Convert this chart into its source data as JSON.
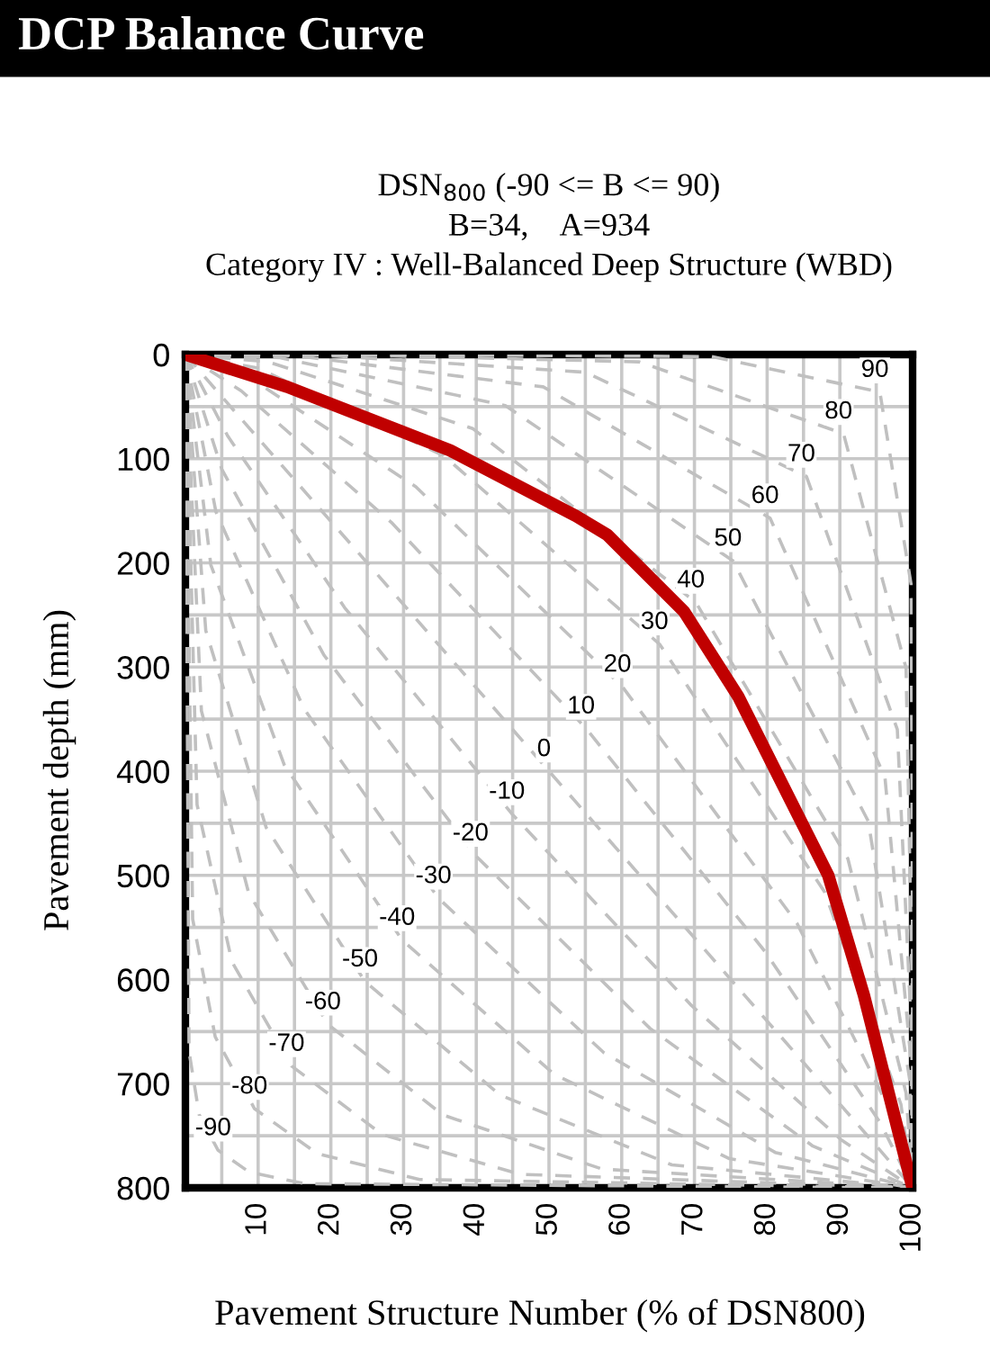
{
  "chart_data": {
    "type": "line",
    "title": "DCP Balance Curve",
    "subtitle": "DSN$_{800}$ (-90 <= B <= 90)\nB=34,    A=934\nCategory IV : Well-Balanced Deep Structure (WBD)",
    "xlabel": "Pavement Structure Number (% of DSN800)",
    "ylabel": "Pavement depth (mm)",
    "xlim": [
      0,
      100
    ],
    "ylim": [
      800,
      0
    ],
    "xticks": [
      {
        "value": 0,
        "label": null
      },
      {
        "value": 5,
        "label": null
      },
      10,
      {
        "value": 15,
        "label": null
      },
      20,
      {
        "value": 25,
        "label": null
      },
      30,
      {
        "value": 35,
        "label": null
      },
      40,
      {
        "value": 45,
        "label": null
      },
      50,
      {
        "value": 55,
        "label": null
      },
      60,
      {
        "value": 65,
        "label": null
      },
      70,
      {
        "value": 75,
        "label": null
      },
      80,
      {
        "value": 85,
        "label": null
      },
      90,
      {
        "value": 95,
        "label": null
      },
      100
    ],
    "yticks": [
      0,
      {
        "value": 50,
        "label": null
      },
      100,
      {
        "value": 150,
        "label": null
      },
      200,
      {
        "value": 250,
        "label": null
      },
      300,
      {
        "value": 350,
        "label": null
      },
      400,
      {
        "value": 450,
        "label": null
      },
      500,
      {
        "value": 550,
        "label": null
      },
      600,
      {
        "value": 650,
        "label": null
      },
      700,
      {
        "value": 750,
        "label": null
      },
      800
    ],
    "grid": true,
    "legend": false,
    "marker": "none",
    "series": [
      {
        "name": "-90",
        "color": "#c0c0c0",
        "line_style": "dashed",
        "x": [
          0,
          0.5,
          1.9,
          4.5,
          8.8,
          16.4,
          100
        ],
        "values": [
          0,
          669,
          730,
          764,
          785,
          796,
          800
        ]
      },
      {
        "name": "-80",
        "color": "#c0c0c0",
        "line_style": "dashed",
        "x": [
          0,
          1.0,
          4.1,
          9.5,
          18.1,
          32.2,
          100
        ],
        "values": [
          0,
          542,
          655,
          724,
          767,
          792,
          800
        ]
      },
      {
        "name": "-70",
        "color": "#c0c0c0",
        "line_style": "dashed",
        "x": [
          0,
          1.6,
          6.4,
          14.6,
          27.1,
          46.0,
          100
        ],
        "values": [
          0,
          432,
          583,
          683,
          749,
          787,
          800
        ]
      },
      {
        "name": "-60",
        "color": "#c0c0c0",
        "line_style": "dashed",
        "x": [
          0,
          2.2,
          8.7,
          19.6,
          35.4,
          57.3,
          100
        ],
        "values": [
          0,
          342,
          517,
          643,
          730,
          782,
          800
        ]
      },
      {
        "name": "-50",
        "color": "#c0c0c0",
        "line_style": "dashed",
        "x": [
          0,
          2.8,
          11.1,
          24.7,
          43.3,
          66.9,
          100
        ],
        "values": [
          0,
          265,
          454,
          602,
          711,
          778,
          800
        ]
      },
      {
        "name": "-40",
        "color": "#c0c0c0",
        "line_style": "dashed",
        "x": [
          0,
          3.5,
          13.6,
          29.8,
          50.7,
          74.8,
          100
        ],
        "values": [
          0,
          202,
          394,
          562,
          691,
          772,
          800
        ]
      },
      {
        "name": "-30",
        "color": "#c0c0c0",
        "line_style": "dashed",
        "x": [
          0,
          4.2,
          16.3,
          34.8,
          57.5,
          81.1,
          100
        ],
        "values": [
          0,
          151,
          340,
          522,
          670,
          766,
          800
        ]
      },
      {
        "name": "-20",
        "color": "#c0c0c0",
        "line_style": "dashed",
        "x": [
          0,
          5.0,
          19.1,
          39.9,
          63.9,
          86.3,
          100
        ],
        "values": [
          0,
          110,
          289,
          481,
          647,
          760,
          800
        ]
      },
      {
        "name": "-10",
        "color": "#c0c0c0",
        "line_style": "dashed",
        "x": [
          0,
          5.8,
          21.9,
          44.9,
          69.6,
          90.2,
          100
        ],
        "values": [
          0,
          78,
          243,
          441,
          625,
          754,
          800
        ]
      },
      {
        "name": "0",
        "color": "#c0c0c0",
        "line_style": "dashed",
        "x": [
          0,
          6.7,
          25,
          50,
          75,
          93.3,
          100
        ],
        "values": [
          0,
          54,
          200,
          400,
          600,
          746,
          800
        ]
      },
      {
        "name": "10",
        "color": "#c0c0c0",
        "line_style": "dashed",
        "x": [
          0,
          7.7,
          28.3,
          55.1,
          79.8,
          95.6,
          100
        ],
        "values": [
          0,
          35,
          161,
          359,
          574,
          738,
          800
        ]
      },
      {
        "name": "20",
        "color": "#c0c0c0",
        "line_style": "dashed",
        "x": [
          0,
          8.8,
          31.7,
          60.1,
          84.1,
          97.2,
          100
        ],
        "values": [
          0,
          22,
          127,
          319,
          546,
          730,
          800
        ]
      },
      {
        "name": "30",
        "color": "#c0c0c0",
        "line_style": "dashed",
        "x": [
          0,
          10.0,
          35.5,
          65.2,
          87.9,
          98.4,
          100
        ],
        "values": [
          0,
          13,
          97,
          278,
          516,
          720,
          800
        ]
      },
      {
        "name": "40",
        "color": "#c0c0c0",
        "line_style": "dashed",
        "x": [
          0,
          11.4,
          39.5,
          70.2,
          91.1,
          99.1,
          100
        ],
        "values": [
          0,
          7,
          71,
          238,
          484,
          709,
          800
        ]
      },
      {
        "name": "50",
        "color": "#c0c0c0",
        "line_style": "dashed",
        "x": [
          0,
          13.0,
          44.0,
          75.3,
          93.9,
          99.6,
          100
        ],
        "values": [
          0,
          3,
          49,
          198,
          448,
          696,
          800
        ]
      },
      {
        "name": "60",
        "color": "#c0c0c0",
        "line_style": "dashed",
        "x": [
          0,
          15.0,
          49.2,
          80.4,
          96.2,
          99.8,
          100
        ],
        "values": [
          0,
          1,
          31,
          157,
          406,
          680,
          800
        ]
      },
      {
        "name": "70",
        "color": "#c0c0c0",
        "line_style": "dashed",
        "x": [
          0,
          17.5,
          55.0,
          85.4,
          97.9,
          99.9,
          100
        ],
        "values": [
          0,
          0,
          17,
          117,
          360,
          660,
          800
        ]
      },
      {
        "name": "80",
        "color": "#c0c0c0",
        "line_style": "dashed",
        "x": [
          0,
          21.0,
          62.4,
          90.5,
          99.1,
          100,
          100
        ],
        "values": [
          0,
          0,
          7,
          76,
          301,
          632,
          800
        ]
      },
      {
        "name": "90",
        "color": "#c0c0c0",
        "line_style": "dashed",
        "x": [
          0,
          26.7,
          72.4,
          95.5,
          99.8,
          100,
          100
        ],
        "values": [
          0,
          0,
          2,
          36,
          221,
          587,
          800
        ]
      },
      {
        "color": "#c00000",
        "line_style": "solid",
        "x": [
          0,
          14,
          36.4,
          53.7,
          58,
          68.6,
          76,
          88.4,
          93.3,
          100
        ],
        "values": [
          0,
          31,
          92,
          155,
          173,
          247,
          328,
          500,
          615,
          800
        ]
      }
    ]
  }
}
